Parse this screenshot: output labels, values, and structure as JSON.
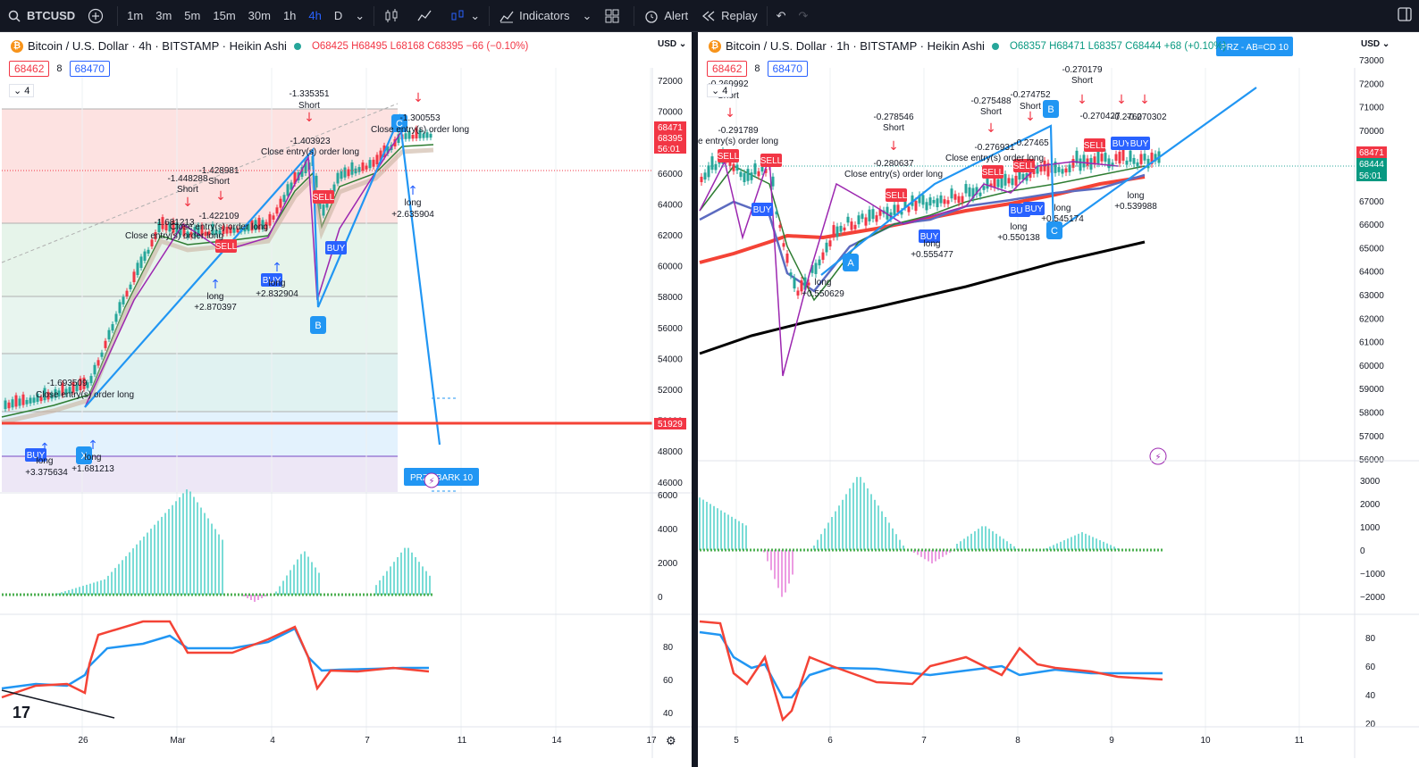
{
  "toolbar": {
    "symbol": "BTCUSD",
    "timeframes": [
      "1m",
      "3m",
      "5m",
      "15m",
      "30m",
      "1h",
      "4h",
      "D"
    ],
    "active_timeframe": "4h",
    "indicators_label": "Indicators",
    "alert_label": "Alert",
    "replay_label": "Replay"
  },
  "left": {
    "title": "Bitcoin / U.S. Dollar · 4h · BITSTAMP · Heikin Ashi",
    "ohlc": {
      "o": "O68425",
      "h": "H68495",
      "l": "L68168",
      "c": "C68395",
      "chg": "−66 (−0.10%)"
    },
    "bid": "68462",
    "spread": "8",
    "ask": "68470",
    "collapse": "4",
    "currency": "USD",
    "price_ticks": [
      "72000",
      "70000",
      "68000",
      "66000",
      "64000",
      "62000",
      "60000",
      "58000",
      "56000",
      "54000",
      "52000",
      "50000",
      "48000",
      "46000"
    ],
    "price_labels": [
      {
        "text": "68471",
        "color": "#f23645"
      },
      {
        "text": "68395",
        "color": "#f23645"
      },
      {
        "text": "56:01",
        "color": "#f23645"
      }
    ],
    "level_label": "51929",
    "osc_ticks": [
      "6000",
      "4000",
      "2000",
      "0"
    ],
    "rsi_ticks": [
      "80",
      "60",
      "40"
    ],
    "date_ticks": [
      "26",
      "Mar",
      "4",
      "7",
      "11",
      "14",
      "17"
    ],
    "annotations": [
      {
        "t": "-1.335351",
        "c": "#131722"
      },
      {
        "t": "Short",
        "c": "#131722"
      },
      {
        "t": "-1.403923",
        "c": "#131722"
      },
      {
        "t": "Close entry(s) order long",
        "c": "#131722"
      },
      {
        "t": "-1.300553",
        "c": "#131722"
      },
      {
        "t": "Close entry(s) order long",
        "c": "#131722"
      },
      {
        "t": "-1.428981",
        "c": "#131722"
      },
      {
        "t": "Short",
        "c": "#131722"
      },
      {
        "t": "-1.448288",
        "c": "#131722"
      },
      {
        "t": "Short",
        "c": "#131722"
      },
      {
        "t": "-1.422109",
        "c": "#131722"
      },
      {
        "t": "Close entry(s) order long",
        "c": "#131722"
      },
      {
        "t": "-1.681213",
        "c": "#131722"
      },
      {
        "t": "Close entry(s) order long",
        "c": "#131722"
      },
      {
        "t": "long",
        "c": "#131722"
      },
      {
        "t": "+2.870397",
        "c": "#131722"
      },
      {
        "t": "long",
        "c": "#131722"
      },
      {
        "t": "+2.832904",
        "c": "#131722"
      },
      {
        "t": "long",
        "c": "#131722"
      },
      {
        "t": "+2.635904",
        "c": "#131722"
      },
      {
        "t": "-1.693509",
        "c": "#131722"
      },
      {
        "t": "Close entry(s) order long",
        "c": "#131722"
      },
      {
        "t": "long",
        "c": "#131722"
      },
      {
        "t": "+3.375634",
        "c": "#131722"
      },
      {
        "t": "long",
        "c": "#131722"
      },
      {
        "t": "+1.681213",
        "c": "#131722"
      }
    ],
    "pattern_points": [
      "B",
      "C",
      "X"
    ],
    "signals": [
      "BUY",
      "BUY",
      "BUY",
      "SELL",
      "SELL"
    ],
    "prz_label": "PRZ - BARK 10"
  },
  "right": {
    "title": "Bitcoin / U.S. Dollar · 1h · BITSTAMP · Heikin Ashi",
    "ohlc": {
      "o": "O68357",
      "h": "H68471",
      "l": "L68357",
      "c": "C68444",
      "chg": "+68 (+0.10%)"
    },
    "bid": "68462",
    "spread": "8",
    "ask": "68470",
    "collapse": "4",
    "currency": "USD",
    "price_ticks": [
      "73000",
      "72000",
      "71000",
      "70000",
      "69000",
      "68000",
      "67000",
      "66000",
      "65000",
      "64000",
      "63000",
      "62000",
      "61000",
      "60000",
      "59000",
      "58000",
      "57000",
      "56000"
    ],
    "price_labels": [
      {
        "text": "68471",
        "color": "#f23645"
      },
      {
        "text": "68444",
        "color": "#089981"
      },
      {
        "text": "56:01",
        "color": "#089981"
      }
    ],
    "osc_ticks": [
      "3000",
      "2000",
      "1000",
      "0",
      "−1000",
      "−2000"
    ],
    "rsi_ticks": [
      "80",
      "60",
      "40",
      "20"
    ],
    "date_ticks": [
      "5",
      "6",
      "7",
      "8",
      "9",
      "10",
      "11"
    ],
    "annotations": [
      {
        "t": "-0.269992",
        "c": "#131722"
      },
      {
        "t": "Short",
        "c": "#131722"
      },
      {
        "t": "-0.291789",
        "c": "#131722"
      },
      {
        "t": "e entry(s) order long",
        "c": "#131722"
      },
      {
        "t": "-0.278546",
        "c": "#131722"
      },
      {
        "t": "Short",
        "c": "#131722"
      },
      {
        "t": "-0.280637",
        "c": "#131722"
      },
      {
        "t": "Close entry(s) order long",
        "c": "#131722"
      },
      {
        "t": "-0.275488",
        "c": "#131722"
      },
      {
        "t": "Short",
        "c": "#131722"
      },
      {
        "t": "-0.274752",
        "c": "#131722"
      },
      {
        "t": "Short",
        "c": "#131722"
      },
      {
        "t": "-0.270179",
        "c": "#131722"
      },
      {
        "t": "Short",
        "c": "#131722"
      },
      {
        "t": "-0.276931",
        "c": "#131722"
      },
      {
        "t": "Close entry(s) order long",
        "c": "#131722"
      },
      {
        "t": "-0.27465",
        "c": "#131722"
      },
      {
        "t": "-0.270427",
        "c": "#131722"
      },
      {
        "t": "-0.2760",
        "c": "#131722"
      },
      {
        "t": "-0.270302",
        "c": "#131722"
      },
      {
        "t": "long",
        "c": "#131722"
      },
      {
        "t": "+0.555477",
        "c": "#131722"
      },
      {
        "t": "long",
        "c": "#131722"
      },
      {
        "t": "+0.550138",
        "c": "#131722"
      },
      {
        "t": "long",
        "c": "#131722"
      },
      {
        "t": "+0.545174",
        "c": "#131722"
      },
      {
        "t": "long",
        "c": "#131722"
      },
      {
        "t": "+0.539988",
        "c": "#131722"
      },
      {
        "t": "long",
        "c": "#131722"
      },
      {
        "t": "+0.550629",
        "c": "#131722"
      }
    ],
    "pattern_points": [
      "A",
      "B",
      "C"
    ],
    "signals": [
      "SELL",
      "SELL",
      "SELL",
      "SELL",
      "SELL",
      "SELL",
      "BUY",
      "BUY",
      "BUY",
      "BUY",
      "BUY",
      "BUY"
    ],
    "prz_label": "PRZ - AB=CD 10"
  },
  "colors": {
    "accent": "#2962ff",
    "up": "#26a69a",
    "down": "#f23645",
    "pattern": "#2196f3",
    "purple": "#9c27b0"
  }
}
